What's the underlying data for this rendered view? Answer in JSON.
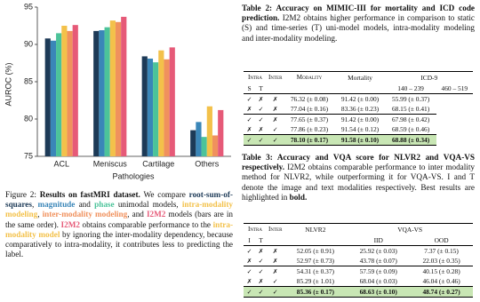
{
  "chart_data": {
    "type": "bar",
    "x_label": "Pathologies",
    "y_label": "AUROC (%)",
    "categories": [
      "ACL",
      "Meniscus",
      "Cartilage",
      "Others"
    ],
    "series": [
      {
        "color": "#1d3a57",
        "values": [
          90.8,
          91.8,
          88.4,
          78.5
        ]
      },
      {
        "color": "#3a86b8",
        "values": [
          90.5,
          91.9,
          88.1,
          79.6
        ]
      },
      {
        "color": "#4cc39a",
        "values": [
          91.5,
          92.3,
          87.6,
          77.6
        ]
      },
      {
        "color": "#f3c14a",
        "values": [
          92.5,
          93.2,
          89.2,
          81.7
        ]
      },
      {
        "color": "#f0915d",
        "values": [
          91.8,
          93.0,
          88.0,
          77.8
        ]
      },
      {
        "color": "#e65a78",
        "values": [
          92.6,
          93.7,
          89.6,
          81.2
        ]
      }
    ],
    "ylim": [
      75,
      95
    ],
    "yticks": [
      75,
      80,
      85,
      90,
      95
    ]
  },
  "figure_caption": [
    {
      "text": "Figure 2: ",
      "color": "#111111"
    },
    {
      "text": "Results on fastMRI dataset.",
      "color": "#111111",
      "bold": true
    },
    {
      "text": " We compare ",
      "color": "#111111"
    },
    {
      "text": "root-sum-of-squares",
      "color": "#1d3a57",
      "bold": true
    },
    {
      "text": ", ",
      "color": "#111111"
    },
    {
      "text": "magnitude",
      "color": "#3a86b8",
      "bold": true
    },
    {
      "text": " and ",
      "color": "#111111"
    },
    {
      "text": "phase",
      "color": "#4cc39a",
      "bold": true
    },
    {
      "text": " unimodal models, ",
      "color": "#111111"
    },
    {
      "text": "intra-modality modeling",
      "color": "#f3c14a",
      "bold": true
    },
    {
      "text": ", ",
      "color": "#111111"
    },
    {
      "text": "inter-modality modeling",
      "color": "#f0915d",
      "bold": true
    },
    {
      "text": ", and ",
      "color": "#111111"
    },
    {
      "text": "I2M2",
      "color": "#e65a78",
      "bold": true
    },
    {
      "text": " models (bars are in the same order). ",
      "color": "#111111"
    },
    {
      "text": "I2M2",
      "color": "#e65a78",
      "bold": true
    },
    {
      "text": " obtains comparable performance to the ",
      "color": "#111111"
    },
    {
      "text": "intra-modality model",
      "color": "#f3c14a",
      "bold": true
    },
    {
      "text": " by ignoring the inter-modality dependency, because comparatively to intra-modality, it contributes less to predicting the label.",
      "color": "#111111"
    }
  ],
  "table2": {
    "caption": [
      {
        "text": "Table 2: ",
        "bold": true
      },
      {
        "text": "Accuracy on MIMIC-III for mortality and ICD code prediction.",
        "bold": true
      },
      {
        "text": " I2M2 obtains higher performance in comparison to static (S) and time-series (T) uni-model models, intra-modality modeling and inter-modality modeling.",
        "bold": false
      }
    ],
    "header": [
      "Intra",
      "Inter",
      "Modality",
      "Mortality",
      "ICD-9"
    ],
    "subheader": [
      "S",
      "T",
      "140 – 239",
      "460 – 519"
    ],
    "rows": [
      {
        "marks": [
          "✓",
          "✗",
          "✗"
        ],
        "cells": [
          "76.32 (± 0.08)",
          "91.42 (± 0.00)",
          "55.99 (± 0.37)"
        ],
        "highlighted": false
      },
      {
        "marks": [
          "✗",
          "✓",
          "✗"
        ],
        "cells": [
          "77.04 (± 0.16)",
          "83.36 (± 0.23)",
          "68.15 (± 0.41)"
        ],
        "highlighted": false
      },
      {
        "marks": [
          "✓",
          "✓",
          "✗"
        ],
        "cells": [
          "77.65 (± 0.37)",
          "91.42 (± 0.00)",
          "67.98 (± 0.42)"
        ],
        "highlighted": false
      },
      {
        "marks": [
          "✗",
          "✗",
          "✓"
        ],
        "cells": [
          "77.86 (± 0.23)",
          "91.54 (± 0.12)",
          "68.59 (± 0.46)"
        ],
        "highlighted": false
      },
      {
        "marks": [
          "✓",
          "✓",
          "✓"
        ],
        "cells": [
          "78.10 (± 0.17)",
          "91.58 (± 0.10)",
          "68.88 (± 0.34)"
        ],
        "highlighted": true
      }
    ]
  },
  "table3": {
    "caption": [
      {
        "text": "Table 3: ",
        "bold": true
      },
      {
        "text": "Accuracy and VQA score for NLVR2 and VQA-VS respectively.",
        "bold": true
      },
      {
        "text": " I2M2 obtains comparable performance to inter modality method for NLVR2, while outperforming it for VQA-VS. I and T denote the image and text modalities respectively. Best results are highlighted in ",
        "bold": false
      },
      {
        "text": "bold.",
        "bold": true
      }
    ],
    "header": [
      "Intra",
      "Inter",
      "NLVR2",
      "VQA-VS"
    ],
    "subheader": [
      "I",
      "T",
      "IID",
      "OOD"
    ],
    "rows": [
      {
        "marks": [
          "✓",
          "✗",
          "✗"
        ],
        "cells": [
          "52.05 (± 0.91)",
          "25.92 (± 0.03)",
          "7.37 (± 0.15)"
        ],
        "highlighted": false
      },
      {
        "marks": [
          "✗",
          "✓",
          "✗"
        ],
        "cells": [
          "52.97 (± 0.73)",
          "43.78 (± 0.07)",
          "22.03 (± 0.35)"
        ],
        "highlighted": false
      },
      {
        "marks": [
          "✓",
          "✓",
          "✗"
        ],
        "cells": [
          "54.31 (± 0.37)",
          "57.59 (± 0.09)",
          "40.15 (± 0.28)"
        ],
        "highlighted": false
      },
      {
        "marks": [
          "✗",
          "✗",
          "✓"
        ],
        "cells": [
          "85.29 (± 1.01)",
          "68.04 (± 0.03)",
          "46.04 (± 0.46)"
        ],
        "highlighted": false
      },
      {
        "marks": [
          "✓",
          "✓",
          "✓"
        ],
        "cells": [
          "85.36 (± 0.17)",
          "68.63 (± 0.10)",
          "48.74 (± 0.27)"
        ],
        "highlighted": true
      }
    ]
  }
}
